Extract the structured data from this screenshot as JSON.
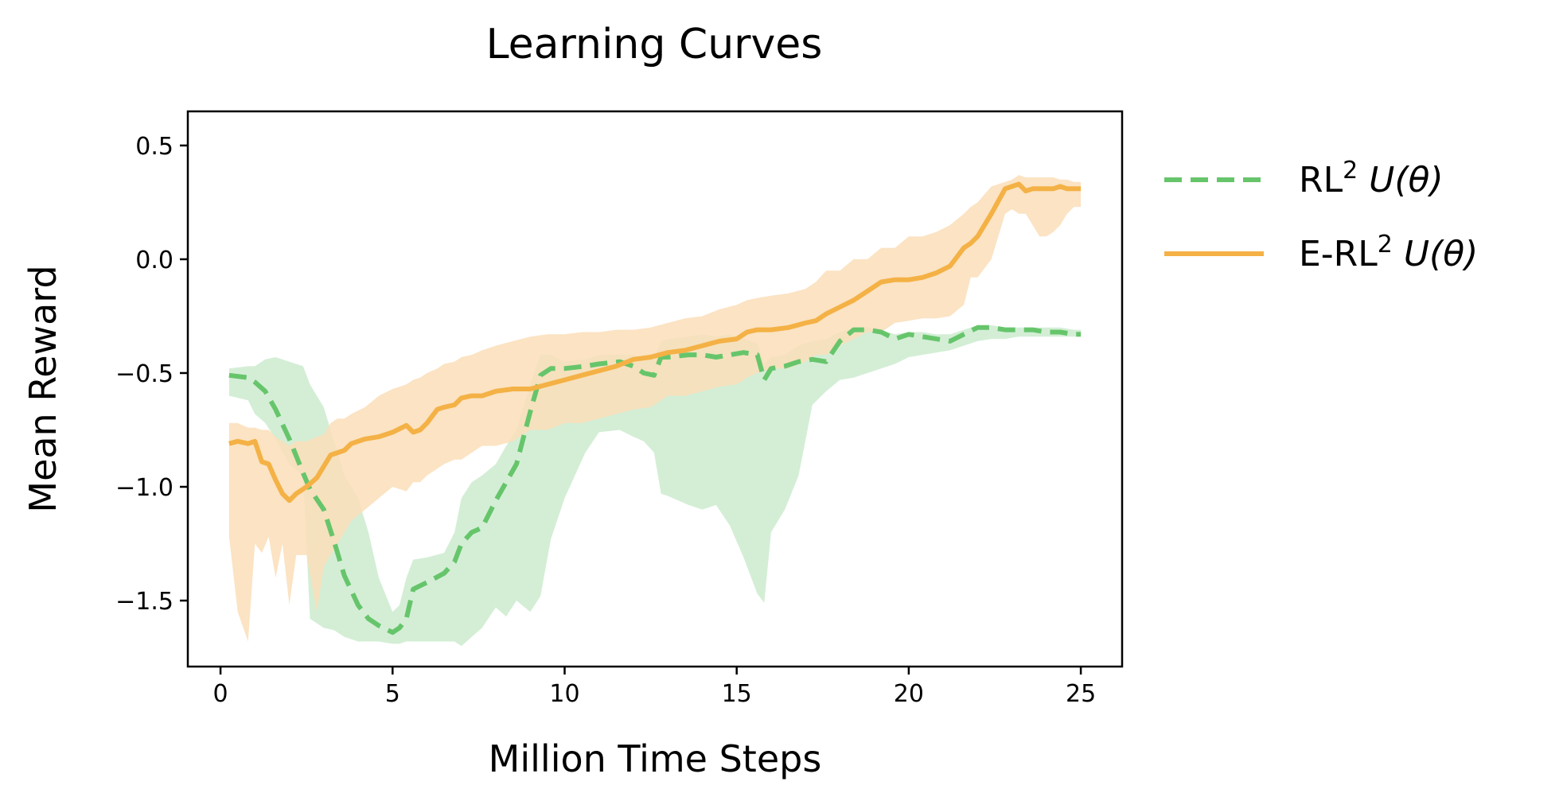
{
  "chart_data": {
    "type": "line",
    "title": "Learning Curves",
    "xlabel": "Million Time Steps",
    "ylabel": "Mean Reward",
    "xlim": [
      -0.95,
      26.2
    ],
    "ylim": [
      -1.79,
      0.65
    ],
    "xticks": [
      0,
      5,
      10,
      15,
      20,
      25
    ],
    "yticks": [
      0.5,
      0.0,
      -0.5,
      -1.0,
      -1.5
    ],
    "xtick_labels": [
      "0",
      "5",
      "10",
      "15",
      "20",
      "25"
    ],
    "ytick_labels": [
      "0.5",
      "0.0",
      "−0.5",
      "−1.0",
      "−1.5"
    ],
    "grid": false,
    "legend_position": "outside-right",
    "series": [
      {
        "name": "RL",
        "name_sup": "2",
        "name_math": "U(θ)",
        "color": "#66c56b",
        "band_color": "#cdebcf",
        "style": "dashed",
        "x": [
          0.25,
          0.8,
          1.0,
          1.3,
          1.6,
          2.0,
          2.4,
          2.6,
          3.0,
          3.3,
          3.6,
          4.0,
          4.3,
          4.6,
          5.0,
          5.2,
          5.4,
          5.6,
          6.0,
          6.5,
          6.8,
          7.0,
          7.3,
          7.6,
          8.0,
          8.3,
          8.6,
          9.0,
          9.3,
          9.6,
          10.0,
          10.6,
          11.0,
          11.6,
          12.0,
          12.3,
          12.6,
          12.8,
          13.0,
          13.6,
          14.0,
          14.4,
          14.8,
          15.2,
          15.6,
          15.8,
          16.0,
          16.4,
          16.8,
          17.2,
          17.6,
          18.0,
          18.4,
          18.8,
          19.2,
          19.6,
          20.0,
          20.4,
          20.8,
          21.2,
          21.6,
          22.0,
          22.4,
          22.8,
          23.2,
          23.6,
          24.0,
          24.4,
          24.8,
          25.0
        ],
        "y": [
          -0.51,
          -0.52,
          -0.54,
          -0.58,
          -0.66,
          -0.79,
          -0.94,
          -1.01,
          -1.1,
          -1.24,
          -1.39,
          -1.52,
          -1.58,
          -1.61,
          -1.64,
          -1.62,
          -1.58,
          -1.45,
          -1.42,
          -1.38,
          -1.33,
          -1.25,
          -1.2,
          -1.18,
          -1.06,
          -0.98,
          -0.9,
          -0.67,
          -0.51,
          -0.48,
          -0.48,
          -0.47,
          -0.46,
          -0.45,
          -0.47,
          -0.5,
          -0.51,
          -0.43,
          -0.43,
          -0.42,
          -0.42,
          -0.43,
          -0.42,
          -0.41,
          -0.42,
          -0.53,
          -0.48,
          -0.47,
          -0.45,
          -0.44,
          -0.45,
          -0.36,
          -0.31,
          -0.31,
          -0.32,
          -0.35,
          -0.33,
          -0.34,
          -0.35,
          -0.36,
          -0.33,
          -0.3,
          -0.3,
          -0.31,
          -0.31,
          -0.31,
          -0.32,
          -0.32,
          -0.33,
          -0.33
        ],
        "lower": [
          -0.6,
          -0.62,
          -0.68,
          -0.72,
          -0.79,
          -0.9,
          -0.95,
          -1.58,
          -1.62,
          -1.63,
          -1.66,
          -1.68,
          -1.68,
          -1.68,
          -1.69,
          -1.69,
          -1.68,
          -1.68,
          -1.68,
          -1.68,
          -1.68,
          -1.7,
          -1.66,
          -1.62,
          -1.53,
          -1.57,
          -1.5,
          -1.55,
          -1.48,
          -1.23,
          -1.05,
          -0.85,
          -0.76,
          -0.75,
          -0.78,
          -0.8,
          -0.85,
          -1.03,
          -1.04,
          -1.08,
          -1.1,
          -1.08,
          -1.17,
          -1.31,
          -1.47,
          -1.51,
          -1.2,
          -1.1,
          -0.95,
          -0.64,
          -0.58,
          -0.53,
          -0.52,
          -0.5,
          -0.48,
          -0.46,
          -0.43,
          -0.42,
          -0.41,
          -0.4,
          -0.38,
          -0.36,
          -0.35,
          -0.35,
          -0.34,
          -0.34,
          -0.34,
          -0.34,
          -0.34,
          -0.34
        ],
        "upper": [
          -0.48,
          -0.47,
          -0.47,
          -0.44,
          -0.43,
          -0.45,
          -0.47,
          -0.55,
          -0.65,
          -0.8,
          -0.95,
          -1.05,
          -1.2,
          -1.4,
          -1.55,
          -1.52,
          -1.4,
          -1.32,
          -1.31,
          -1.29,
          -1.2,
          -1.05,
          -0.98,
          -0.95,
          -0.9,
          -0.82,
          -0.75,
          -0.55,
          -0.42,
          -0.42,
          -0.45,
          -0.44,
          -0.42,
          -0.42,
          -0.42,
          -0.44,
          -0.44,
          -0.36,
          -0.35,
          -0.34,
          -0.33,
          -0.34,
          -0.33,
          -0.35,
          -0.37,
          -0.46,
          -0.43,
          -0.42,
          -0.38,
          -0.36,
          -0.35,
          -0.32,
          -0.3,
          -0.3,
          -0.31,
          -0.33,
          -0.32,
          -0.32,
          -0.33,
          -0.33,
          -0.31,
          -0.29,
          -0.29,
          -0.3,
          -0.3,
          -0.3,
          -0.3,
          -0.3,
          -0.31,
          -0.31
        ]
      },
      {
        "name": "E-RL",
        "name_sup": "2",
        "name_math": "U(θ)",
        "color": "#f4b145",
        "band_color": "#fadeb8",
        "style": "solid",
        "x": [
          0.25,
          0.5,
          0.8,
          1.0,
          1.2,
          1.4,
          1.6,
          1.8,
          2.0,
          2.2,
          2.5,
          2.8,
          3.0,
          3.2,
          3.4,
          3.6,
          3.8,
          4.2,
          4.6,
          5.0,
          5.4,
          5.6,
          5.8,
          6.0,
          6.3,
          6.5,
          6.8,
          7.0,
          7.3,
          7.6,
          8.0,
          8.5,
          9.0,
          9.5,
          10.0,
          10.5,
          11.0,
          11.5,
          12.0,
          12.5,
          13.0,
          13.5,
          14.0,
          14.5,
          15.0,
          15.3,
          15.6,
          16.0,
          16.5,
          17.0,
          17.3,
          17.6,
          18.0,
          18.4,
          18.8,
          19.2,
          19.6,
          20.0,
          20.4,
          20.8,
          21.2,
          21.6,
          21.8,
          22.0,
          22.4,
          22.8,
          23.0,
          23.2,
          23.4,
          23.6,
          23.8,
          24.0,
          24.2,
          24.4,
          24.6,
          24.8,
          25.0
        ],
        "y": [
          -0.81,
          -0.8,
          -0.81,
          -0.8,
          -0.89,
          -0.9,
          -0.97,
          -1.03,
          -1.06,
          -1.03,
          -1.0,
          -0.96,
          -0.91,
          -0.86,
          -0.85,
          -0.84,
          -0.81,
          -0.79,
          -0.78,
          -0.76,
          -0.73,
          -0.76,
          -0.75,
          -0.72,
          -0.66,
          -0.65,
          -0.64,
          -0.61,
          -0.6,
          -0.6,
          -0.58,
          -0.57,
          -0.57,
          -0.55,
          -0.53,
          -0.51,
          -0.49,
          -0.47,
          -0.44,
          -0.43,
          -0.41,
          -0.4,
          -0.38,
          -0.36,
          -0.35,
          -0.32,
          -0.31,
          -0.31,
          -0.3,
          -0.28,
          -0.27,
          -0.24,
          -0.21,
          -0.18,
          -0.14,
          -0.1,
          -0.09,
          -0.09,
          -0.08,
          -0.06,
          -0.03,
          0.05,
          0.07,
          0.1,
          0.2,
          0.31,
          0.32,
          0.33,
          0.3,
          0.31,
          0.31,
          0.31,
          0.31,
          0.32,
          0.31,
          0.31,
          0.31
        ],
        "lower": [
          -1.22,
          -1.55,
          -1.68,
          -1.25,
          -1.29,
          -1.22,
          -1.4,
          -1.25,
          -1.52,
          -1.3,
          -1.3,
          -1.55,
          -1.35,
          -1.3,
          -1.25,
          -1.2,
          -1.15,
          -1.1,
          -1.05,
          -1.0,
          -1.02,
          -0.98,
          -0.98,
          -0.95,
          -0.92,
          -0.9,
          -0.88,
          -0.88,
          -0.85,
          -0.82,
          -0.82,
          -0.8,
          -0.75,
          -0.75,
          -0.72,
          -0.72,
          -0.7,
          -0.68,
          -0.66,
          -0.65,
          -0.6,
          -0.6,
          -0.58,
          -0.56,
          -0.55,
          -0.52,
          -0.5,
          -0.48,
          -0.48,
          -0.45,
          -0.42,
          -0.42,
          -0.38,
          -0.35,
          -0.32,
          -0.32,
          -0.28,
          -0.27,
          -0.26,
          -0.26,
          -0.25,
          -0.2,
          -0.08,
          -0.08,
          0.0,
          0.2,
          0.22,
          0.2,
          0.2,
          0.15,
          0.1,
          0.1,
          0.12,
          0.15,
          0.2,
          0.23,
          0.23
        ],
        "upper": [
          -0.72,
          -0.72,
          -0.74,
          -0.74,
          -0.75,
          -0.75,
          -0.78,
          -0.8,
          -0.82,
          -0.8,
          -0.8,
          -0.78,
          -0.77,
          -0.72,
          -0.7,
          -0.7,
          -0.68,
          -0.65,
          -0.6,
          -0.57,
          -0.55,
          -0.53,
          -0.52,
          -0.5,
          -0.48,
          -0.46,
          -0.45,
          -0.43,
          -0.42,
          -0.4,
          -0.38,
          -0.36,
          -0.34,
          -0.33,
          -0.33,
          -0.32,
          -0.32,
          -0.31,
          -0.31,
          -0.3,
          -0.28,
          -0.26,
          -0.25,
          -0.22,
          -0.2,
          -0.18,
          -0.17,
          -0.16,
          -0.15,
          -0.13,
          -0.1,
          -0.05,
          -0.05,
          0.0,
          0.0,
          0.05,
          0.05,
          0.1,
          0.1,
          0.12,
          0.15,
          0.2,
          0.23,
          0.25,
          0.32,
          0.34,
          0.35,
          0.37,
          0.36,
          0.36,
          0.36,
          0.36,
          0.36,
          0.35,
          0.35,
          0.34,
          0.34
        ]
      }
    ]
  }
}
